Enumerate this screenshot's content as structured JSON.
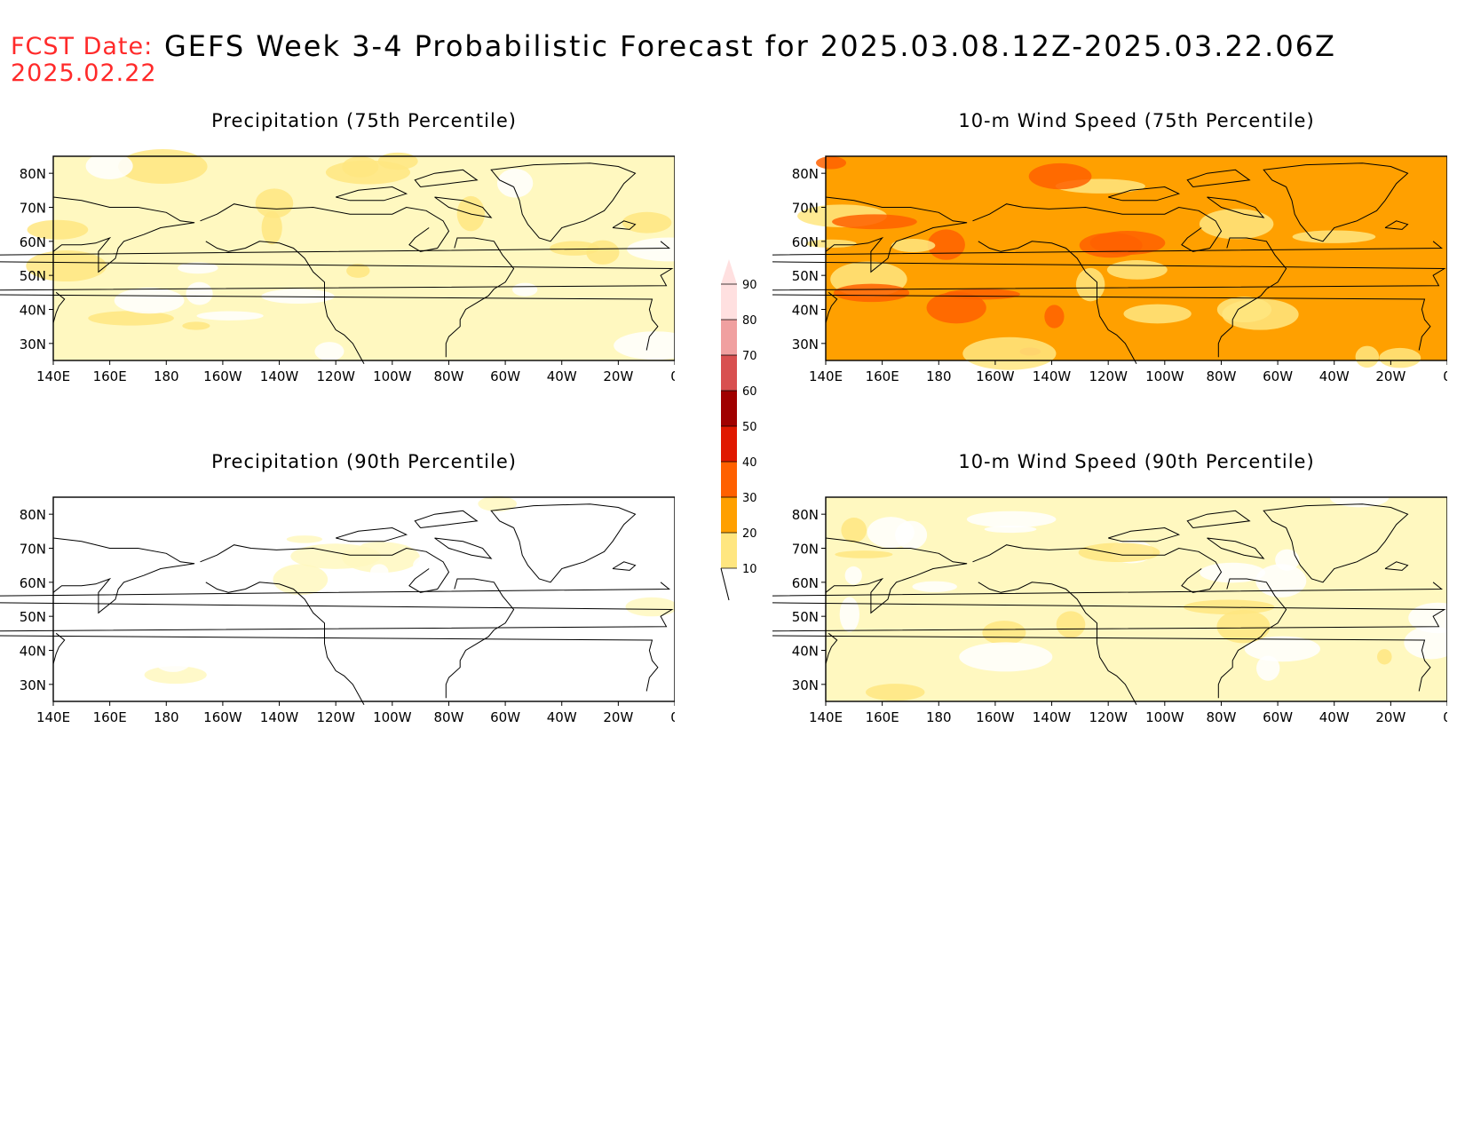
{
  "header": {
    "fcst_label": "FCST Date:",
    "fcst_date": "2025.02.22",
    "title": "GEFS Week 3-4 Probabilistic Forecast for 2025.03.08.12Z-2025.03.22.06Z"
  },
  "panels": [
    {
      "title": "Precipitation (75th Percentile)",
      "base_level": 20,
      "hot_level": 30
    },
    {
      "title": "10-m Wind Speed (75th Percentile)",
      "base_level": 40,
      "hot_level": 50
    },
    {
      "title": "Precipitation (90th Percentile)",
      "base_level": 10,
      "hot_level": 20
    },
    {
      "title": "10-m Wind Speed (90th Percentile)",
      "base_level": 20,
      "hot_level": 30
    }
  ],
  "lat_labels": [
    "80N",
    "70N",
    "60N",
    "50N",
    "40N",
    "30N"
  ],
  "lon_labels": [
    "140E",
    "160E",
    "180",
    "160W",
    "140W",
    "120W",
    "100W",
    "80W",
    "60W",
    "40W",
    "20W",
    "0"
  ],
  "colorbar": {
    "levels": [
      "10",
      "20",
      "30",
      "40",
      "50",
      "60",
      "70",
      "80",
      "90"
    ],
    "colors": [
      "#fff8c0",
      "#ffe680",
      "#ffa000",
      "#ff6000",
      "#e01800",
      "#a00000",
      "#d85050",
      "#f0a0a0",
      "#ffe0e0"
    ]
  },
  "fill_colors": {
    "10": "#ffffff",
    "20": "#fff8c0",
    "30": "#ffe680",
    "40": "#ffa000",
    "50": "#ff6000",
    "60": "#e01800"
  }
}
